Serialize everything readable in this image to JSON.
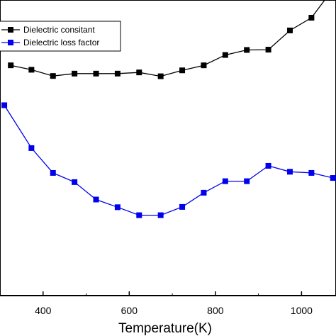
{
  "chart_data": {
    "type": "line",
    "xlabel": "Temperature(K)",
    "ylabel": "",
    "xlim": [
      300,
      1080
    ],
    "ylim": [
      0,
      10
    ],
    "xticks": [
      400,
      600,
      800,
      1000
    ],
    "legend_placement": "top-left",
    "series": [
      {
        "name": "Dielectric consitant",
        "color": "#000000",
        "marker": "square",
        "x": [
          325,
          373,
          423,
          473,
          523,
          573,
          623,
          673,
          723,
          773,
          823,
          873,
          923,
          973,
          1023,
          1073
        ],
        "y": [
          7.79,
          7.64,
          7.43,
          7.51,
          7.51,
          7.51,
          7.55,
          7.42,
          7.62,
          7.79,
          8.14,
          8.31,
          8.32,
          8.97,
          9.4,
          10.37
        ]
      },
      {
        "name": "Dielectric loss factor",
        "color": "#0000ee",
        "marker": "square",
        "x": [
          310,
          373,
          423,
          473,
          523,
          573,
          623,
          673,
          723,
          773,
          823,
          873,
          923,
          973,
          1023,
          1073
        ],
        "y": [
          6.44,
          4.99,
          4.15,
          3.84,
          3.25,
          2.99,
          2.72,
          2.72,
          3.0,
          3.48,
          3.87,
          3.87,
          4.39,
          4.19,
          4.15,
          3.98
        ]
      }
    ]
  }
}
